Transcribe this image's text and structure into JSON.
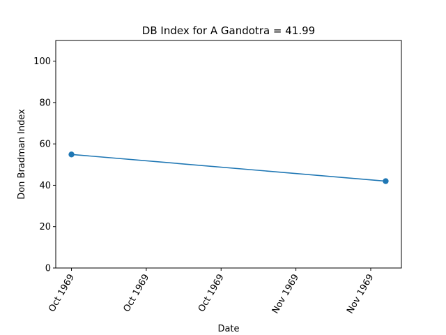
{
  "chart_data": {
    "type": "line",
    "title": "DB Index for A Gandotra = 41.99",
    "xlabel": "Date",
    "ylabel": "Don Bradman Index",
    "ylim": [
      0,
      110
    ],
    "yticks": [
      0,
      20,
      40,
      60,
      80,
      100
    ],
    "x_ticks": [
      "Oct 1969",
      "Oct 1969",
      "Oct 1969",
      "Nov 1969",
      "Nov 1969"
    ],
    "series": [
      {
        "color": "#1f77b4",
        "points": [
          {
            "x": "1969-10-14",
            "y": 54.9
          },
          {
            "x": "1969-11-04",
            "y": 41.99
          }
        ]
      }
    ],
    "grid": false
  }
}
